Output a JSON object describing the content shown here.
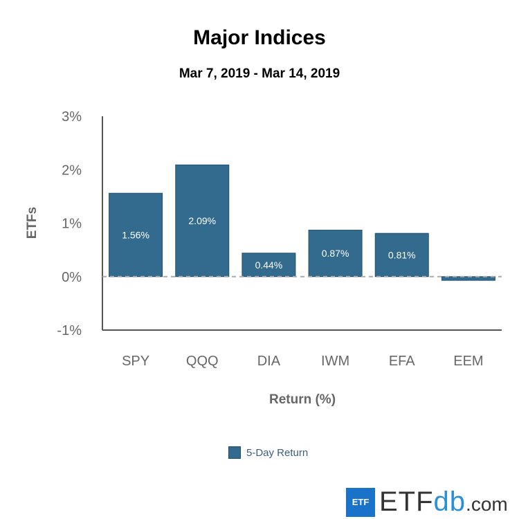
{
  "chart_data": {
    "type": "bar",
    "title": "Major Indices",
    "subtitle": "Mar 7, 2019 - Mar 14, 2019",
    "xlabel": "Return (%)",
    "ylabel": "ETFs",
    "categories": [
      "SPY",
      "QQQ",
      "DIA",
      "IWM",
      "EFA",
      "EEM"
    ],
    "series": [
      {
        "name": "5-Day Return",
        "values": [
          1.56,
          2.09,
          0.44,
          0.87,
          0.81,
          -0.07
        ]
      }
    ],
    "data_labels": [
      "1.56%",
      "2.09%",
      "0.44%",
      "0.87%",
      "0.81%",
      ""
    ],
    "ylim": [
      -1,
      3
    ],
    "yticks": [
      3,
      2,
      1,
      0,
      -1
    ],
    "ytick_labels": [
      "3%",
      "2%",
      "1%",
      "0%",
      "-1%"
    ],
    "legend_position": "bottom",
    "color": "#336b8f"
  },
  "logo": {
    "box": "ETF",
    "main": "ETF",
    "db": "db",
    "com": ".com"
  }
}
